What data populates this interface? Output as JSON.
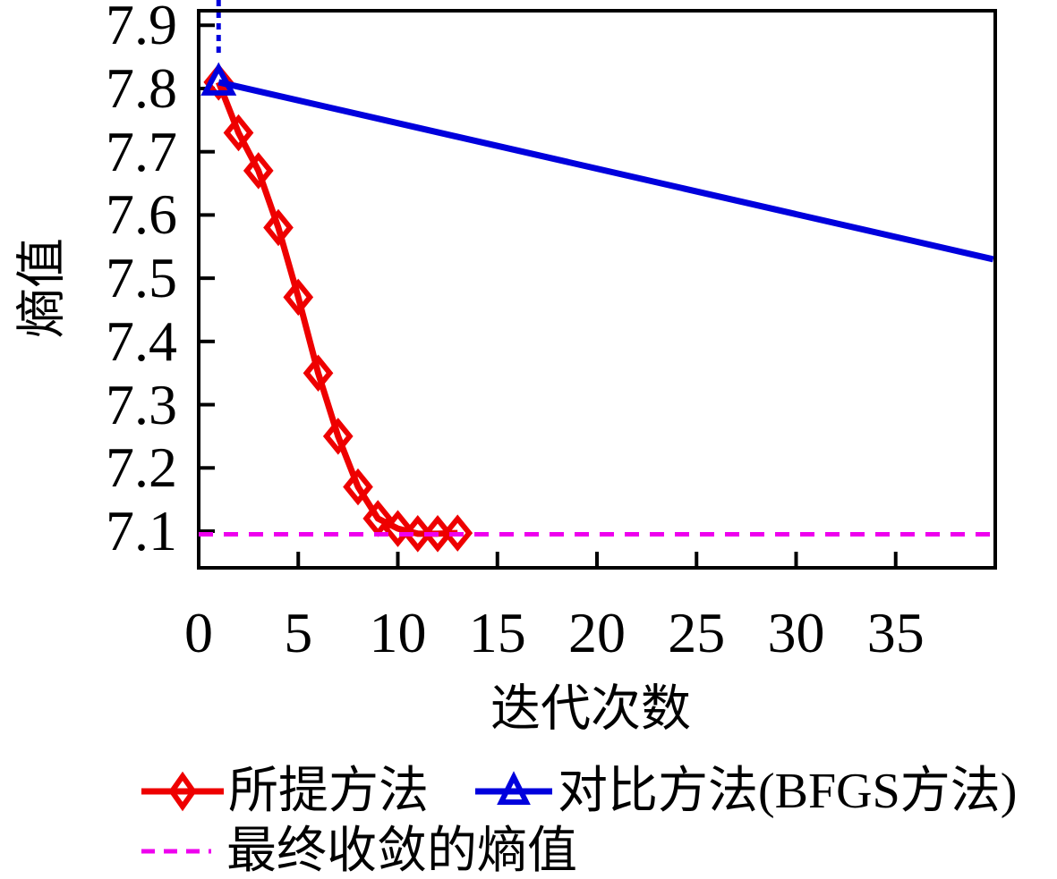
{
  "figure": {
    "background": "#ffffff",
    "frame_color": "#000000"
  },
  "chart_data": {
    "type": "line",
    "title": "",
    "xlabel": "迭代次数",
    "ylabel": "熵值",
    "xlim": [
      0,
      40
    ],
    "ylim": [
      7.042,
      7.923
    ],
    "xticks": [
      0,
      5,
      10,
      15,
      20,
      25,
      30,
      35
    ],
    "yticks": [
      7.1,
      7.2,
      7.3,
      7.4,
      7.5,
      7.6,
      7.7,
      7.8,
      7.9
    ],
    "grid": false,
    "legend_position": "below-chart",
    "series": [
      {
        "name": "所提方法",
        "type": "line",
        "line_style": "solid",
        "marker": "diamond",
        "color": "#ee0000",
        "x": [
          1,
          2,
          3,
          4,
          5,
          6,
          7,
          8,
          9,
          10,
          11,
          12,
          13
        ],
        "y": [
          7.81,
          7.73,
          7.67,
          7.58,
          7.47,
          7.35,
          7.25,
          7.17,
          7.12,
          7.104,
          7.096,
          7.096,
          7.097
        ]
      },
      {
        "name": "对比方法(BFGS方法)",
        "type": "line",
        "line_style": "solid",
        "marker": "triangle",
        "marker_indices": [
          0
        ],
        "color": "#0000dd",
        "x": [
          1,
          39.9
        ],
        "y": [
          7.81,
          7.53
        ]
      },
      {
        "name": "最终收敛的熵值",
        "type": "hline",
        "line_style": "dashed",
        "marker": "none",
        "color": "#ee00ee",
        "y_value": 7.095
      }
    ],
    "annotations": [
      {
        "type": "dotted-vline",
        "x": 1,
        "y_to": 7.85,
        "color": "#0000dd"
      }
    ]
  }
}
